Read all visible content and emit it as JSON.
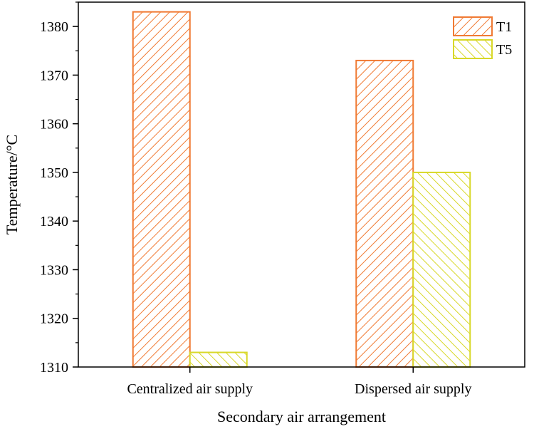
{
  "chart_data": {
    "type": "bar",
    "xlabel": "Secondary air arrangement",
    "ylabel": "Temperature/°C",
    "categories": [
      "Centralized air supply",
      "Dispersed air supply"
    ],
    "series": [
      {
        "name": "T1",
        "values": [
          1383,
          1373
        ],
        "color": "#f07a33",
        "hatch": "forward-diagonal"
      },
      {
        "name": "T5",
        "values": [
          1313,
          1350
        ],
        "color": "#d8d828",
        "hatch": "back-diagonal"
      }
    ],
    "ylim": [
      1310,
      1385
    ],
    "yticks": [
      1310,
      1320,
      1330,
      1340,
      1350,
      1360,
      1370,
      1380
    ],
    "grid": false,
    "legend_position": "top-right"
  }
}
